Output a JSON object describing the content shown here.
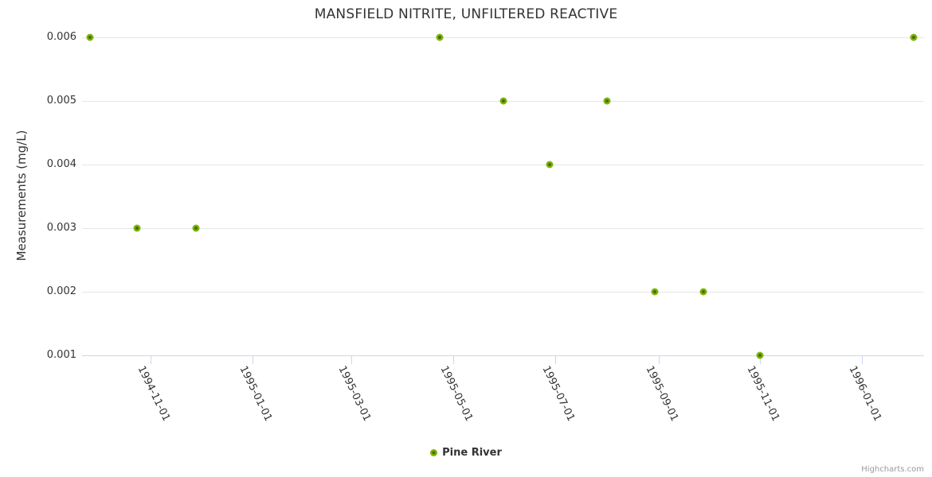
{
  "title": "MANSFIELD NITRITE, UNFILTERED REACTIVE",
  "legend": {
    "series_label": "Pine River"
  },
  "credits": "Highcharts.com",
  "colors": {
    "marker_outer": "#7cb406",
    "marker_inner": "#4a6e0a",
    "grid": "#e6e6e6",
    "axis_line": "#ccd6eb",
    "text": "#333333",
    "credits_text": "#999999"
  },
  "chart_data": {
    "type": "scatter",
    "title": "MANSFIELD NITRITE, UNFILTERED REACTIVE",
    "xlabel": "",
    "ylabel": "Measurements (mg/L)",
    "legend_position": "bottom-center",
    "grid": "horizontal-only",
    "x_range": [
      "1994-09-21",
      "1996-02-07"
    ],
    "x_ticks": [
      "1994-11-01",
      "1995-01-01",
      "1995-03-01",
      "1995-05-01",
      "1995-07-01",
      "1995-09-01",
      "1995-11-01",
      "1996-01-01"
    ],
    "y_range": [
      0.001,
      0.006
    ],
    "y_ticks": [
      0.001,
      0.002,
      0.003,
      0.004,
      0.005,
      0.006
    ],
    "y_tick_labels": [
      "0.001",
      "0.002",
      "0.003",
      "0.004",
      "0.005",
      "0.006"
    ],
    "series": [
      {
        "name": "Pine River",
        "points": [
          {
            "x": "1994-09-26",
            "y": 0.006
          },
          {
            "x": "1994-10-24",
            "y": 0.003
          },
          {
            "x": "1994-11-28",
            "y": 0.003
          },
          {
            "x": "1995-04-23",
            "y": 0.006
          },
          {
            "x": "1995-05-31",
            "y": 0.005
          },
          {
            "x": "1995-06-28",
            "y": 0.004
          },
          {
            "x": "1995-08-01",
            "y": 0.005
          },
          {
            "x": "1995-08-30",
            "y": 0.002
          },
          {
            "x": "1995-09-28",
            "y": 0.002
          },
          {
            "x": "1995-11-01",
            "y": 0.001
          },
          {
            "x": "1996-02-01",
            "y": 0.006
          }
        ]
      }
    ]
  }
}
